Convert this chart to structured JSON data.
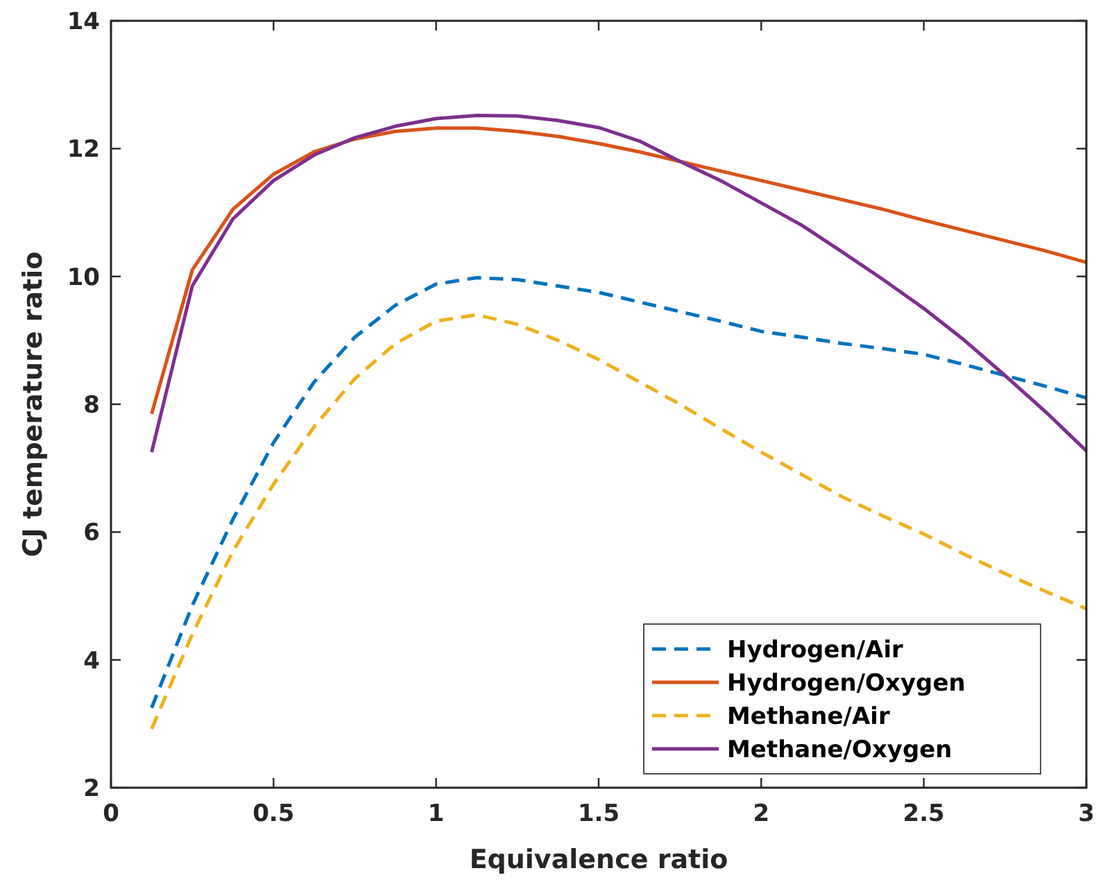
{
  "chart_data": {
    "type": "line",
    "xlabel": "Equivalence ratio",
    "ylabel": "CJ temperature ratio",
    "x": [
      0.125,
      0.25,
      0.375,
      0.5,
      0.625,
      0.75,
      0.875,
      1,
      1.125,
      1.25,
      1.375,
      1.5,
      1.625,
      1.75,
      1.875,
      2,
      2.125,
      2.25,
      2.375,
      2.5,
      2.625,
      2.75,
      2.875,
      3
    ],
    "xlim": [
      0,
      3
    ],
    "xticks": [
      0,
      0.5,
      1,
      1.5,
      2,
      2.5,
      3
    ],
    "ylim": [
      2,
      14
    ],
    "yticks": [
      2,
      4,
      6,
      8,
      10,
      12,
      14
    ],
    "grid": false,
    "legend": "bottom right",
    "series": [
      {
        "name": "Hydrogen/Air",
        "color": "#0072bd",
        "line_style": "dashed",
        "values": [
          3.25,
          4.85,
          6.2,
          7.4,
          8.35,
          9.05,
          9.55,
          9.88,
          9.98,
          9.95,
          9.85,
          9.75,
          9.6,
          9.45,
          9.3,
          9.14,
          9.05,
          8.95,
          8.87,
          8.78,
          8.62,
          8.45,
          8.28,
          8.1
        ]
      },
      {
        "name": "Hydrogen/Oxygen",
        "color": "#d95319",
        "line_style": "solid",
        "values": [
          7.85,
          10.1,
          11.05,
          11.6,
          11.95,
          12.15,
          12.27,
          12.32,
          12.32,
          12.27,
          12.19,
          12.08,
          11.95,
          11.8,
          11.65,
          11.5,
          11.35,
          11.2,
          11.05,
          10.88,
          10.72,
          10.56,
          10.4,
          10.22
        ]
      },
      {
        "name": "Methane/Air",
        "color": "#edb120",
        "line_style": "dashed",
        "values": [
          2.92,
          4.4,
          5.7,
          6.75,
          7.65,
          8.4,
          8.95,
          9.3,
          9.4,
          9.25,
          9.0,
          8.7,
          8.35,
          8.0,
          7.62,
          7.25,
          6.9,
          6.55,
          6.25,
          5.97,
          5.65,
          5.35,
          5.07,
          4.8
        ]
      },
      {
        "name": "Methane/Oxygen",
        "color": "#7e2f8e",
        "line_style": "solid",
        "values": [
          7.25,
          9.85,
          10.9,
          11.5,
          11.9,
          12.17,
          12.35,
          12.47,
          12.52,
          12.51,
          12.44,
          12.33,
          12.12,
          11.8,
          11.5,
          11.15,
          10.8,
          10.38,
          9.95,
          9.5,
          9.0,
          8.45,
          7.88,
          7.27
        ]
      }
    ]
  }
}
